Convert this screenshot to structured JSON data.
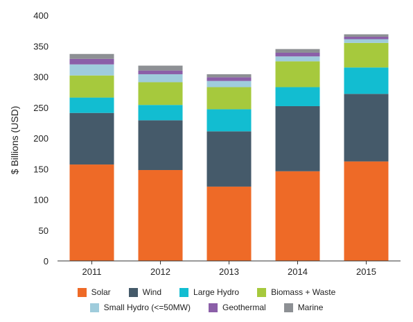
{
  "chart_data": {
    "type": "bar",
    "stacked": true,
    "title": "",
    "xlabel": "",
    "ylabel": "$ Billions (USD)",
    "ylim": [
      0,
      400
    ],
    "yticks": [
      0,
      50,
      100,
      150,
      200,
      250,
      300,
      350,
      400
    ],
    "grid": false,
    "legend_position": "bottom",
    "categories": [
      "2011",
      "2012",
      "2013",
      "2014",
      "2015"
    ],
    "series": [
      {
        "name": "Solar",
        "color": "#ee6a27",
        "values": [
          157,
          148,
          121,
          146,
          162
        ]
      },
      {
        "name": "Wind",
        "color": "#455a6a",
        "values": [
          84,
          81,
          90,
          106,
          110
        ]
      },
      {
        "name": "Large Hydro",
        "color": "#12bdd1",
        "values": [
          25,
          25,
          36,
          31,
          43
        ]
      },
      {
        "name": "Biomass + Waste",
        "color": "#a6c93d",
        "values": [
          36,
          37,
          36,
          42,
          40
        ]
      },
      {
        "name": "Small Hydro (<=50MW)",
        "color": "#9fccdc",
        "values": [
          18,
          13,
          10,
          8,
          6
        ]
      },
      {
        "name": "Geothermal",
        "color": "#8b5fa8",
        "values": [
          9,
          6,
          6,
          6,
          4
        ]
      },
      {
        "name": "Marine",
        "color": "#8d9094",
        "values": [
          8,
          8,
          5,
          6,
          4
        ]
      }
    ]
  }
}
